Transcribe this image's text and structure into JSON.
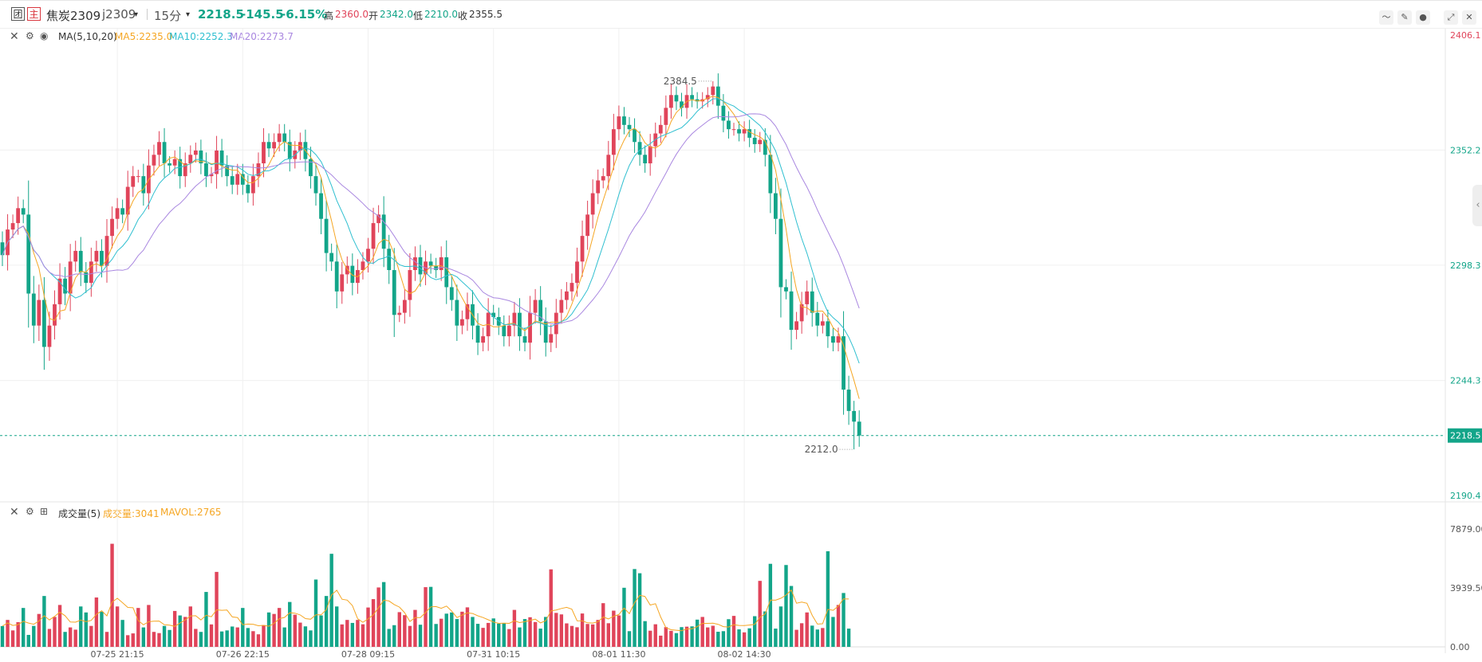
{
  "header": {
    "period_icon": "团",
    "main_icon": "主",
    "name": "焦炭2309",
    "code": "j2309",
    "interval": "15分",
    "last": "2218.5",
    "change": "-145.5",
    "change_pct": "-6.15%",
    "high_label": "高",
    "high": "2360.0",
    "open_label": "开",
    "open": "2342.0",
    "low_label": "低",
    "low": "2210.0",
    "close_label": "收",
    "close": "2355.5"
  },
  "main_legend": {
    "title": "MA(5,10,20)",
    "ma5": "MA5:2235.0",
    "ma10": "MA10:2252.3",
    "ma20": "MA20:2273.7"
  },
  "vol_legend": {
    "title": "成交量(5)",
    "vol": "成交量:3041",
    "mavol": "MAVOL:2765"
  },
  "annotations": {
    "high_mark": "2384.5",
    "low_mark": "2212.0"
  },
  "colors": {
    "up": "#e0445a",
    "down": "#13a589",
    "ma5": "#f5a623",
    "ma10": "#2fbfd0",
    "ma20": "#a987e0",
    "grid": "#f0f0f0",
    "last_price": "#13a589"
  },
  "chart_data": [
    {
      "type": "candlestick",
      "title": "焦炭2309 15分",
      "price_axis": [
        "2406.1",
        "2352.2",
        "2298.3",
        "2244.3",
        "2190.4"
      ],
      "price_axis_values": [
        2406.1,
        2352.2,
        2298.3,
        2244.3,
        2190.4
      ],
      "last_price_label": "2218.5",
      "last_price": 2218.5,
      "high": 2384.5,
      "low": 2212.0,
      "x_ticks": [
        "07-25 21:15",
        "07-26 22:15",
        "07-28 09:15",
        "07-31 10:15",
        "08-01 11:30",
        "08-02 14:30"
      ],
      "x_tick_bar_index": [
        22,
        46,
        70,
        94,
        118,
        142
      ],
      "closes": [
        2303,
        2315,
        2318,
        2325,
        2322,
        2285,
        2270,
        2282,
        2260,
        2270,
        2280,
        2292,
        2285,
        2300,
        2305,
        2295,
        2290,
        2300,
        2305,
        2298,
        2312,
        2320,
        2325,
        2322,
        2335,
        2340,
        2340,
        2332,
        2345,
        2350,
        2356,
        2346,
        2345,
        2348,
        2340,
        2346,
        2350,
        2352,
        2346,
        2340,
        2341,
        2352,
        2345,
        2340,
        2336,
        2341,
        2336,
        2332,
        2340,
        2346,
        2356,
        2353,
        2356,
        2360,
        2356,
        2348,
        2352,
        2356,
        2348,
        2340,
        2332,
        2320,
        2304,
        2300,
        2286,
        2294,
        2298,
        2290,
        2296,
        2300,
        2306,
        2318,
        2322,
        2306,
        2296,
        2275,
        2276,
        2282,
        2296,
        2302,
        2294,
        2300,
        2298,
        2296,
        2302,
        2288,
        2282,
        2270,
        2273,
        2280,
        2270,
        2262,
        2265,
        2276,
        2274,
        2270,
        2265,
        2270,
        2276,
        2265,
        2262,
        2276,
        2282,
        2272,
        2262,
        2266,
        2276,
        2282,
        2286,
        2290,
        2300,
        2312,
        2322,
        2332,
        2338,
        2340,
        2350,
        2362,
        2368,
        2364,
        2362,
        2356,
        2350,
        2346,
        2354,
        2360,
        2364,
        2372,
        2378,
        2375,
        2372,
        2378,
        2376,
        2375,
        2376,
        2378,
        2382,
        2373,
        2366,
        2362,
        2362,
        2360,
        2362,
        2358,
        2355,
        2357,
        2350,
        2332,
        2320,
        2288,
        2286,
        2268,
        2272,
        2280,
        2286,
        2276,
        2270,
        2272,
        2265,
        2262,
        2265,
        2240,
        2230,
        2225,
        2218.5
      ],
      "volumes": [
        1390,
        1800,
        1100,
        1650,
        2600,
        800,
        1400,
        2200,
        3400,
        1200,
        2000,
        2800,
        1000,
        1300,
        1150,
        2700,
        2300,
        1400,
        3300,
        2350,
        1000,
        6890,
        2700,
        1800,
        780,
        900,
        2600,
        1300,
        2800,
        1000,
        920,
        1400,
        1130,
        2400,
        2100,
        2000,
        2700,
        1200,
        1000,
        3670,
        1500,
        5010,
        1030,
        1100,
        1360,
        1300,
        2600,
        1260,
        1050,
        840,
        1450,
        2300,
        2200,
        2600,
        1300,
        3000,
        2150,
        1620,
        1370,
        1100,
        4500,
        2100,
        3400,
        6220,
        2700,
        1500,
        1800,
        1600,
        1800,
        1510,
        2630,
        3190,
        3970,
        4330,
        1200,
        1450,
        2320,
        2120,
        1400,
        2470,
        1480,
        3990,
        4010,
        1530,
        1880,
        2220,
        2300,
        1860,
        2350,
        2640,
        2000,
        1540,
        1270,
        1600,
        1900,
        1550,
        1600,
        1190,
        2470,
        1300,
        1860,
        1980,
        1660,
        1220,
        2000,
        5180,
        2270,
        2170,
        1570,
        1400,
        1310,
        2230,
        1530,
        1500,
        1800,
        2920,
        1580,
        2420,
        2100,
        3950,
        1050,
        5200,
        4920,
        1720,
        1080,
        1510,
        750,
        1320,
        1070,
        920,
        1320,
        1350,
        1370,
        1820,
        2000,
        1300,
        1410,
        1010,
        1050,
        1850,
        2070,
        1170,
        970,
        1240,
        2050,
        4410,
        2370,
        5550,
        1220,
        2700,
        5470,
        4070,
        1140,
        1580,
        2300,
        1420,
        1160,
        1260,
        6390,
        2000,
        2800,
        3600,
        1220
      ]
    }
  ]
}
